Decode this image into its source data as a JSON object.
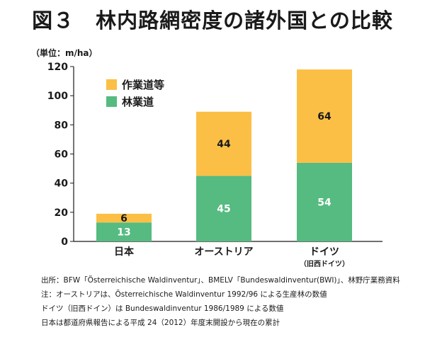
{
  "title": "図３　林内路網密度の諸外国との比較",
  "unit_label": "（単位：m/ha）",
  "chart_data": {
    "type": "bar",
    "stacked": true,
    "categories": [
      "日本",
      "オーストリア",
      "ドイツ"
    ],
    "category_sublabels": [
      "",
      "",
      "（旧西ドイツ）"
    ],
    "series": [
      {
        "name": "林業道",
        "values": [
          13,
          45,
          54
        ],
        "color": "#55bb80",
        "label_color": "#ffffff"
      },
      {
        "name": "作業道等",
        "values": [
          6,
          44,
          64
        ],
        "color": "#fcbf45",
        "label_color": "#1a1a1a"
      }
    ],
    "legend_order": [
      1,
      0
    ],
    "legend_position": "top-left",
    "ylim": [
      0,
      120
    ],
    "yticks": [
      0,
      20,
      40,
      60,
      80,
      100,
      120
    ],
    "grid": false
  },
  "notes": [
    "出所：BFW「Österreichische Waldinventur」、BMELV「Bundeswaldinventur(BWI)」、林野庁業務資料",
    "注：オーストリアは、Österreichische Waldinventur 1992/96 による生産林の数値",
    "ドイツ（旧西ドイン）は Bundeswaldinventur 1986/1989 による数値",
    "日本は都道府県報告による平成 24（2012）年度末開設から現在の累計"
  ]
}
